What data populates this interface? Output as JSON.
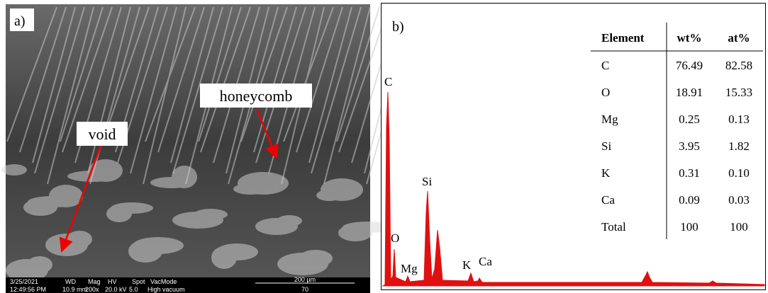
{
  "panel_a": {
    "label": "a)",
    "annotations": [
      "honeycomb",
      "void"
    ],
    "info_bar": {
      "headers": [
        "3/25/2021",
        "WD",
        "Mag",
        "HV",
        "Spot",
        "VacMode"
      ],
      "values": [
        "12:49:56 PM",
        "10.9 mm",
        "200x",
        "20.0 kV",
        "5.0",
        "High vacuum"
      ],
      "scale": "200 µm",
      "scale_id": "70"
    }
  },
  "panel_b": {
    "label": "b)",
    "peak_labels": [
      "C",
      "O",
      "Mg",
      "Si",
      "K",
      "Ca"
    ],
    "table": {
      "header": [
        "Element",
        "wt%",
        "at%"
      ],
      "rows": [
        [
          "C",
          "76.49",
          "82.58"
        ],
        [
          "O",
          "18.91",
          "15.33"
        ],
        [
          "Mg",
          "0.25",
          "0.13"
        ],
        [
          "Si",
          "3.95",
          "1.82"
        ],
        [
          "K",
          "0.31",
          "0.10"
        ],
        [
          "Ca",
          "0.09",
          "0.03"
        ],
        [
          "Total",
          "100",
          "100"
        ]
      ]
    }
  }
}
